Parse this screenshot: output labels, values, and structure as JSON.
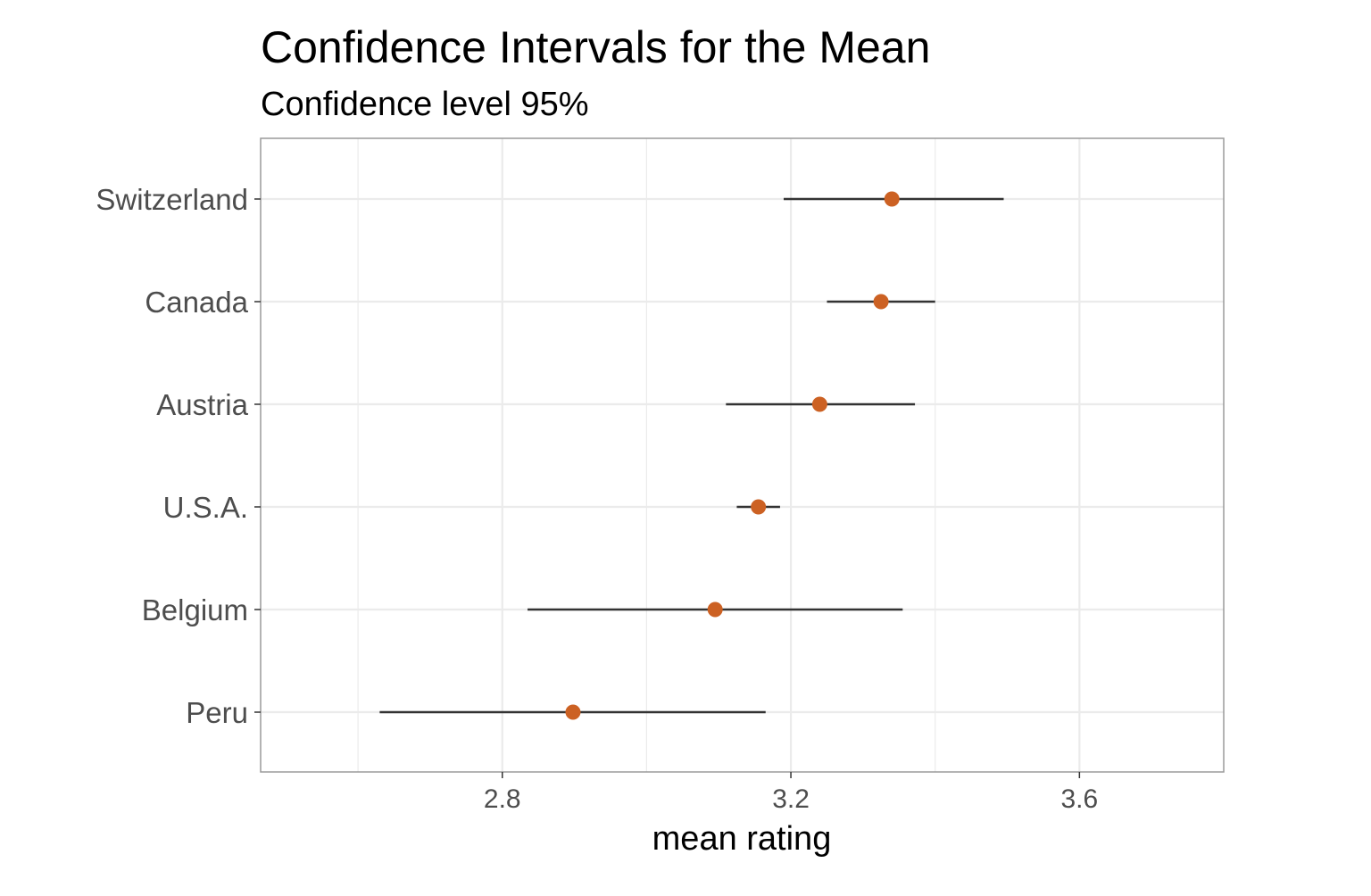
{
  "chart_data": {
    "type": "errorbar",
    "title": "Confidence Intervals for the Mean",
    "subtitle": "Confidence level 95%",
    "xlabel": "mean rating",
    "ylabel": "",
    "xlim": [
      2.465,
      3.8
    ],
    "x_ticks": [
      2.8,
      3.2,
      3.6
    ],
    "x_tick_labels": [
      "2.8",
      "3.2",
      "3.6"
    ],
    "x_minor_ticks": [
      2.6,
      3.0,
      3.4,
      3.8
    ],
    "grid": true,
    "colors": {
      "point": "#cc6123",
      "interval": "#333333",
      "grid": "#ebebeb",
      "border": "#9a9a9a"
    },
    "categories": [
      "Switzerland",
      "Canada",
      "Austria",
      "U.S.A.",
      "Belgium",
      "Peru"
    ],
    "points": [
      {
        "category": "Switzerland",
        "mean": 3.34,
        "lower": 3.19,
        "upper": 3.495
      },
      {
        "category": "Canada",
        "mean": 3.325,
        "lower": 3.25,
        "upper": 3.4
      },
      {
        "category": "Austria",
        "mean": 3.24,
        "lower": 3.11,
        "upper": 3.372
      },
      {
        "category": "U.S.A.",
        "mean": 3.155,
        "lower": 3.125,
        "upper": 3.185
      },
      {
        "category": "Belgium",
        "mean": 3.095,
        "lower": 2.835,
        "upper": 3.355
      },
      {
        "category": "Peru",
        "mean": 2.898,
        "lower": 2.63,
        "upper": 3.165
      }
    ]
  }
}
